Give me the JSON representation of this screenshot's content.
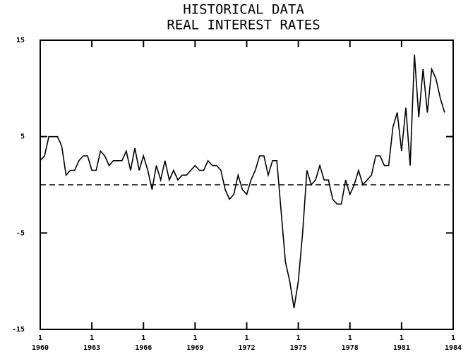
{
  "chart_data": {
    "type": "line",
    "title": [
      "HISTORICAL DATA",
      "REAL INTEREST RATES"
    ],
    "x": [
      1960,
      1960.25,
      1960.5,
      1961,
      1961.25,
      1961.5,
      1961.75,
      1962,
      1962.25,
      1962.5,
      1962.75,
      1963,
      1963.25,
      1963.5,
      1963.75,
      1964,
      1964.25,
      1964.5,
      1964.75,
      1965,
      1965.25,
      1965.5,
      1965.75,
      1966,
      1966.25,
      1966.5,
      1966.75,
      1967,
      1967.25,
      1967.5,
      1967.75,
      1968,
      1968.25,
      1968.5,
      1968.75,
      1969,
      1969.25,
      1969.5,
      1969.75,
      1970,
      1970.25,
      1970.5,
      1970.75,
      1971,
      1971.25,
      1971.5,
      1971.75,
      1972,
      1972.25,
      1972.5,
      1972.75,
      1973,
      1973.25,
      1973.5,
      1973.75,
      1974.25,
      1974.5,
      1974.75,
      1975,
      1975.25,
      1975.5,
      1975.75,
      1976,
      1976.25,
      1976.5,
      1976.75,
      1977,
      1977.25,
      1977.5,
      1977.75,
      1978,
      1978.25,
      1978.5,
      1978.75,
      1979,
      1979.25,
      1979.5,
      1979.75,
      1980,
      1980.25,
      1980.5,
      1980.75,
      1981,
      1981.25,
      1981.5,
      1981.75,
      1982,
      1982.25,
      1982.5,
      1982.75,
      1983,
      1983.25,
      1983.5
    ],
    "series": [
      {
        "color": "#000000",
        "values": [
          2.5,
          3,
          5,
          5,
          4,
          1,
          1.5,
          1.5,
          2.5,
          3,
          3,
          1.5,
          1.5,
          3.5,
          3,
          2,
          2.5,
          2.5,
          2.5,
          3.5,
          1.5,
          3.8,
          1.5,
          3,
          1.5,
          -0.5,
          2,
          0.5,
          2.5,
          0.5,
          1.5,
          0.5,
          1,
          1,
          1.5,
          2,
          1.5,
          1.5,
          2.5,
          2,
          2,
          1.5,
          -0.5,
          -1.5,
          -1,
          1,
          -0.5,
          -1,
          0.5,
          1.5,
          3,
          3,
          1,
          2.5,
          2.5,
          -8,
          -10,
          -12.8,
          -10,
          -5,
          1.5,
          0,
          0.5,
          2,
          0.5,
          0.5,
          -1.5,
          -2,
          -2,
          0.5,
          -1,
          0,
          1.5,
          0,
          0.5,
          1,
          3,
          3,
          2,
          2,
          6,
          7.5,
          3.5,
          8,
          2,
          13.5,
          7,
          12,
          7.5,
          12,
          11,
          9,
          7.5
        ]
      }
    ],
    "reference_line": 0,
    "xlim": [
      1960,
      1984
    ],
    "xticks": [
      1960,
      1963,
      1966,
      1969,
      1972,
      1975,
      1978,
      1981,
      1984
    ],
    "xtick_sublabel": "1",
    "ylim": [
      -15,
      15
    ],
    "yticks": [
      -15,
      -5,
      5,
      15
    ]
  }
}
